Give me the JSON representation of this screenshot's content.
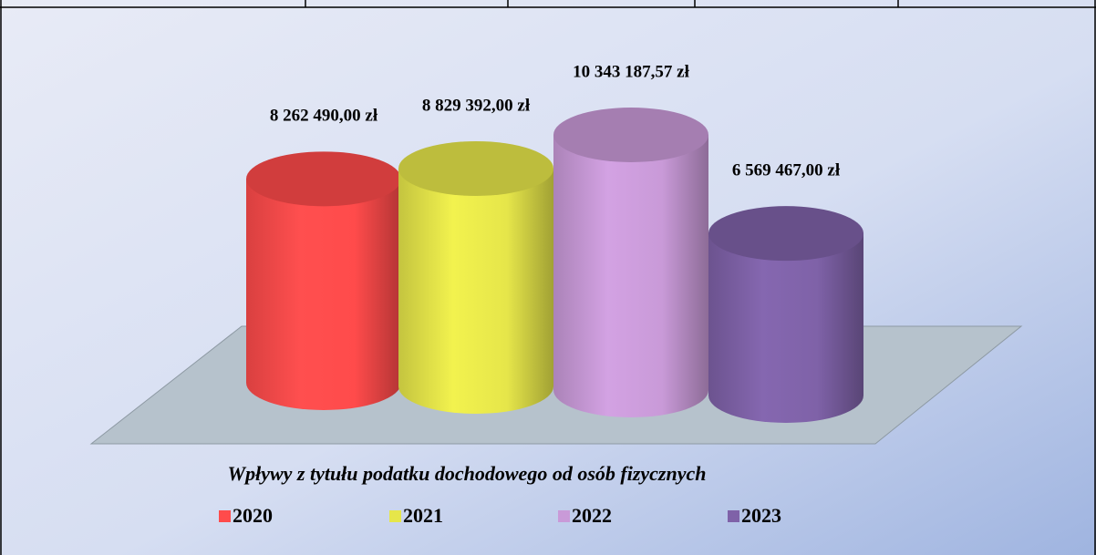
{
  "chart_data": {
    "type": "bar",
    "title": "Wpływy z tytułu podatku dochodowego od osób fizycznych",
    "series": [
      {
        "name": "2020",
        "color": "#ff4b4b",
        "values": [
          8262490
        ],
        "value_labels": [
          "8 262 490,00 zł"
        ]
      },
      {
        "name": "2021",
        "color": "#e6e64a",
        "values": [
          8829392
        ],
        "value_labels": [
          "8 829 392,00 zł"
        ]
      },
      {
        "name": "2022",
        "color": "#c99ad8",
        "values": [
          10343187.57
        ],
        "value_labels": [
          "10 343 187,57 zł"
        ]
      },
      {
        "name": "2023",
        "color": "#7f62a8",
        "values": [
          6569467
        ],
        "value_labels": [
          "6 569 467,00 zł"
        ]
      }
    ],
    "legend": "bottom"
  }
}
